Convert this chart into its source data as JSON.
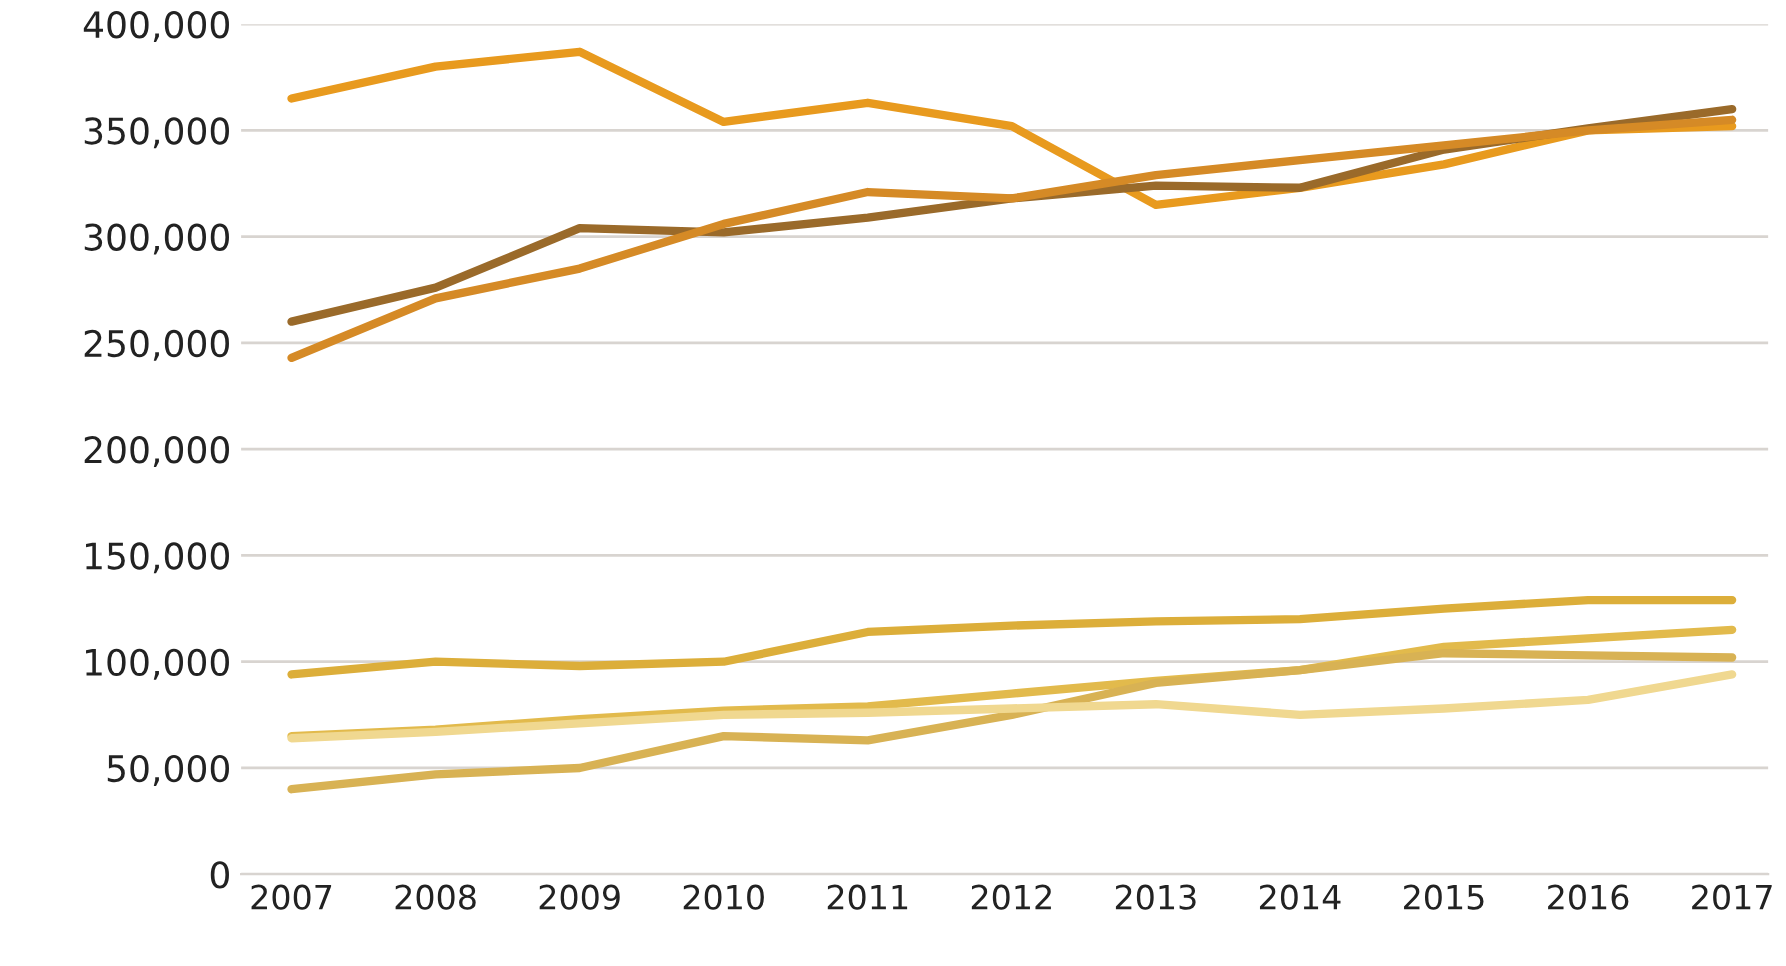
{
  "chart_data": {
    "type": "line",
    "categories": [
      "2007",
      "2008",
      "2009",
      "2010",
      "2011",
      "2012",
      "2013",
      "2014",
      "2015",
      "2016",
      "2017"
    ],
    "series": [
      {
        "color": "#e89a1e",
        "values": [
          365000,
          380000,
          387000,
          354000,
          363000,
          352000,
          315000,
          323000,
          334000,
          350000,
          352000
        ]
      },
      {
        "color": "#9a6a2a",
        "values": [
          260000,
          276000,
          304000,
          302000,
          309000,
          318000,
          324000,
          323000,
          341000,
          351000,
          360000
        ]
      },
      {
        "color": "#d58a26",
        "values": [
          243000,
          271000,
          285000,
          306000,
          321000,
          318000,
          329000,
          336000,
          343000,
          350000,
          355000
        ]
      },
      {
        "color": "#dcae3a",
        "values": [
          94000,
          100000,
          98000,
          100000,
          114000,
          117000,
          119000,
          120000,
          125000,
          129000,
          129000
        ]
      },
      {
        "color": "#e2ba4c",
        "values": [
          65000,
          68000,
          73000,
          77000,
          79000,
          85000,
          91000,
          96000,
          107000,
          111000,
          115000
        ]
      },
      {
        "color": "#d8b254",
        "values": [
          40000,
          47000,
          50000,
          65000,
          63000,
          75000,
          90000,
          96000,
          104000,
          103000,
          102000
        ]
      },
      {
        "color": "#f0d890",
        "values": [
          64000,
          67000,
          71000,
          75000,
          76000,
          78000,
          80000,
          75000,
          78000,
          82000,
          94000
        ]
      }
    ],
    "ylim": [
      0,
      400000
    ],
    "yticks": [
      {
        "value": 0,
        "label": "0"
      },
      {
        "value": 50000,
        "label": "50,000"
      },
      {
        "value": 100000,
        "label": "100,000"
      },
      {
        "value": 150000,
        "label": "150,000"
      },
      {
        "value": 200000,
        "label": "200,000"
      },
      {
        "value": 250000,
        "label": "250,000"
      },
      {
        "value": 300000,
        "label": "300,000"
      },
      {
        "value": 350000,
        "label": "350,000"
      },
      {
        "value": 400000,
        "label": "400,000"
      }
    ],
    "grid": "y"
  }
}
